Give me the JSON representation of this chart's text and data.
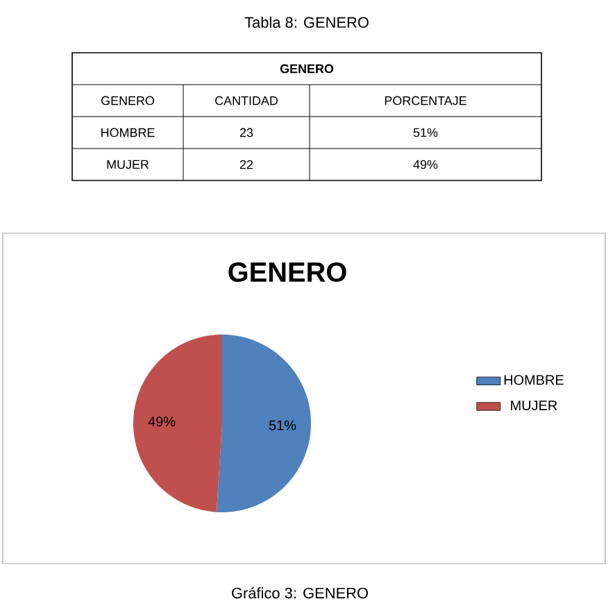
{
  "chart_data": [
    {
      "type": "other",
      "title": "Tabla 8: GENERO",
      "subtitle": "GENERO",
      "annotations": [
        "GENERO",
        "CANTIDAD",
        "PORCENTAJE",
        "HOMBRE",
        "23",
        "51%",
        "MUJER",
        "22",
        "49%"
      ]
    },
    {
      "type": "pie",
      "title": "GENERO",
      "categories": [
        "HOMBRE",
        "MUJER"
      ],
      "values": [
        51,
        49
      ],
      "colors": [
        "#4f81bd",
        "#c0504d"
      ],
      "value_labels": [
        "51%",
        "49%"
      ],
      "legend": "right",
      "annotations": [
        "Gráfico 3: GENERO"
      ]
    }
  ]
}
